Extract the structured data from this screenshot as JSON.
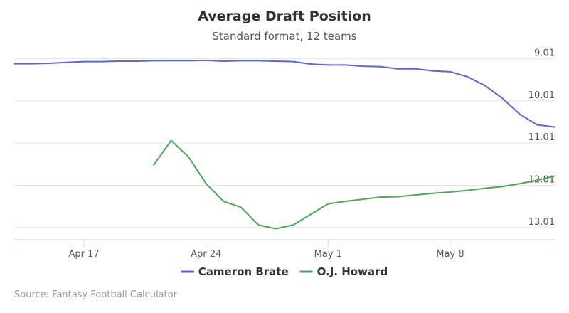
{
  "chart_data": {
    "type": "line",
    "title": "Average Draft Position",
    "subtitle": "Standard format, 12 teams",
    "credits": "Source: Fantasy Football Calculator",
    "x_dates": [
      "Apr 13",
      "Apr 14",
      "Apr 15",
      "Apr 16",
      "Apr 17",
      "Apr 18",
      "Apr 19",
      "Apr 20",
      "Apr 21",
      "Apr 22",
      "Apr 23",
      "Apr 24",
      "Apr 25",
      "Apr 26",
      "Apr 27",
      "Apr 28",
      "Apr 29",
      "Apr 30",
      "May 1",
      "May 2",
      "May 3",
      "May 4",
      "May 5",
      "May 6",
      "May 7",
      "May 8",
      "May 9",
      "May 10",
      "May 11",
      "May 12",
      "May 13",
      "May 14"
    ],
    "x_ticks": [
      "Apr 17",
      "Apr 24",
      "May 1",
      "May 8"
    ],
    "y_ticks": [
      9.01,
      10.01,
      11.01,
      12.01,
      13.01
    ],
    "ylim": [
      8.8,
      13.3
    ],
    "y_reversed": true,
    "legend_position": "bottom",
    "series": [
      {
        "name": "Cameron Brate",
        "color": "#5b63e6",
        "values": [
          9.13,
          9.13,
          9.12,
          9.1,
          9.08,
          9.08,
          9.07,
          9.07,
          9.06,
          9.06,
          9.06,
          9.05,
          9.07,
          9.06,
          9.06,
          9.07,
          9.08,
          9.14,
          9.16,
          9.16,
          9.19,
          9.2,
          9.25,
          9.25,
          9.3,
          9.32,
          9.44,
          9.65,
          9.95,
          10.33,
          10.58,
          10.63
        ]
      },
      {
        "name": "O.J. Howard",
        "color": "#4aa85a",
        "values": [
          null,
          null,
          null,
          null,
          null,
          null,
          null,
          null,
          11.53,
          10.95,
          11.34,
          11.97,
          12.39,
          12.53,
          12.95,
          13.04,
          12.95,
          12.7,
          12.45,
          12.39,
          12.34,
          12.29,
          12.28,
          12.24,
          12.2,
          12.17,
          12.13,
          12.08,
          12.04,
          11.97,
          11.89,
          11.79
        ]
      }
    ]
  }
}
